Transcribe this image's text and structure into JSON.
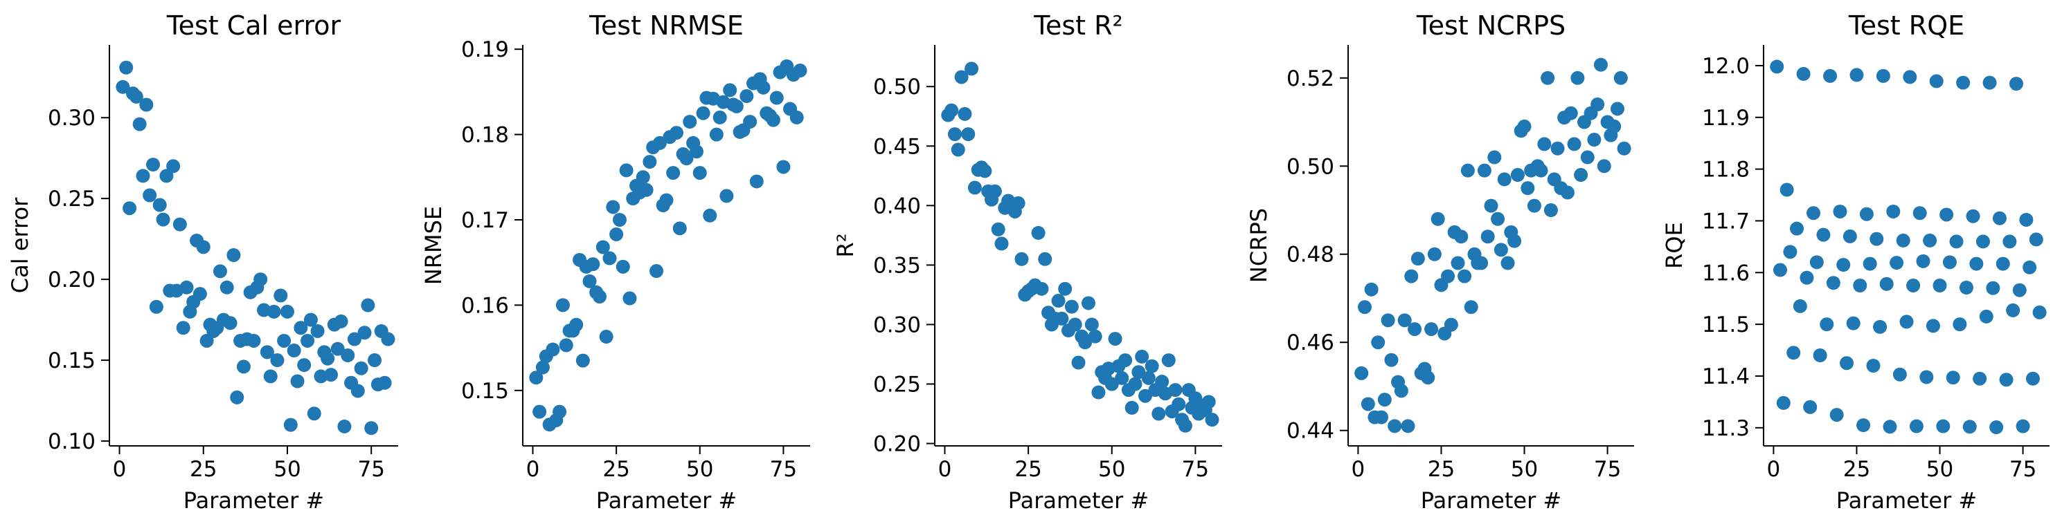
{
  "figure": {
    "marker_color": "#1f77b4",
    "axis_color": "#000000"
  },
  "chart_data": [
    {
      "type": "scatter",
      "title": "Test Cal error",
      "xlabel": "Parameter #",
      "ylabel": "Cal error",
      "xlim": [
        -3,
        83
      ],
      "ylim": [
        0.097,
        0.345
      ],
      "xticks": [
        "0",
        "25",
        "50",
        "75"
      ],
      "xtick_values": [
        0,
        25,
        50,
        75
      ],
      "yticks": [
        "0.10",
        "0.15",
        "0.20",
        "0.25",
        "0.30"
      ],
      "ytick_values": [
        0.1,
        0.15,
        0.2,
        0.25,
        0.3
      ],
      "grid": false,
      "legend": "none",
      "series": [
        {
          "x": [
            1,
            2,
            3,
            4,
            5,
            6,
            7,
            8,
            9,
            10,
            11,
            12,
            13,
            14,
            15,
            16,
            17,
            18,
            19,
            20,
            21,
            22,
            23,
            24,
            25,
            26,
            27,
            28,
            29,
            30,
            31,
            32,
            33,
            34,
            35,
            36,
            37,
            38,
            39,
            40,
            41,
            42,
            43,
            44,
            45,
            46,
            47,
            48,
            49,
            50,
            51,
            52,
            53,
            54,
            55,
            56,
            57,
            58,
            59,
            60,
            61,
            62,
            63,
            64,
            65,
            66,
            67,
            68,
            69,
            70,
            71,
            72,
            73,
            74,
            75,
            76,
            77,
            78,
            79,
            80
          ],
          "y": [
            0.319,
            0.331,
            0.244,
            0.315,
            0.313,
            0.296,
            0.264,
            0.308,
            0.252,
            0.271,
            0.183,
            0.246,
            0.237,
            0.264,
            0.193,
            0.27,
            0.193,
            0.234,
            0.17,
            0.195,
            0.18,
            0.186,
            0.224,
            0.191,
            0.22,
            0.162,
            0.172,
            0.168,
            0.17,
            0.205,
            0.175,
            0.195,
            0.173,
            0.215,
            0.127,
            0.162,
            0.146,
            0.163,
            0.192,
            0.162,
            0.195,
            0.2,
            0.181,
            0.155,
            0.14,
            0.18,
            0.15,
            0.19,
            0.162,
            0.18,
            0.11,
            0.156,
            0.137,
            0.17,
            0.147,
            0.162,
            0.175,
            0.117,
            0.168,
            0.14,
            0.155,
            0.151,
            0.141,
            0.172,
            0.157,
            0.174,
            0.109,
            0.153,
            0.136,
            0.163,
            0.131,
            0.145,
            0.167,
            0.184,
            0.108,
            0.15,
            0.135,
            0.168,
            0.136,
            0.163
          ]
        }
      ]
    },
    {
      "type": "scatter",
      "title": "Test NRMSE",
      "xlabel": "Parameter #",
      "ylabel": "NRMSE",
      "xlim": [
        -3,
        83
      ],
      "ylim": [
        0.1435,
        0.1905
      ],
      "xticks": [
        "0",
        "25",
        "50",
        "75"
      ],
      "xtick_values": [
        0,
        25,
        50,
        75
      ],
      "yticks": [
        "0.15",
        "0.16",
        "0.17",
        "0.18",
        "0.19"
      ],
      "ytick_values": [
        0.15,
        0.16,
        0.17,
        0.18,
        0.19
      ],
      "grid": false,
      "legend": "none",
      "series": [
        {
          "x": [
            1,
            2,
            3,
            4,
            5,
            6,
            7,
            8,
            9,
            10,
            11,
            12,
            13,
            14,
            15,
            16,
            17,
            18,
            19,
            20,
            21,
            22,
            23,
            24,
            25,
            26,
            27,
            28,
            29,
            30,
            31,
            32,
            33,
            34,
            35,
            36,
            37,
            38,
            39,
            40,
            41,
            42,
            43,
            44,
            45,
            46,
            47,
            48,
            49,
            50,
            51,
            52,
            53,
            54,
            55,
            56,
            57,
            58,
            59,
            60,
            61,
            62,
            63,
            64,
            65,
            66,
            67,
            68,
            69,
            70,
            71,
            72,
            73,
            74,
            75,
            76,
            77,
            78,
            79,
            80
          ],
          "y": [
            0.1515,
            0.1475,
            0.1527,
            0.154,
            0.146,
            0.1548,
            0.1465,
            0.1475,
            0.16,
            0.1553,
            0.157,
            0.157,
            0.1577,
            0.1653,
            0.1535,
            0.1645,
            0.1628,
            0.1648,
            0.1615,
            0.161,
            0.1668,
            0.1563,
            0.1655,
            0.1715,
            0.1683,
            0.17,
            0.1645,
            0.1758,
            0.1608,
            0.1725,
            0.174,
            0.1732,
            0.175,
            0.1735,
            0.1768,
            0.1785,
            0.164,
            0.179,
            0.1717,
            0.1723,
            0.1797,
            0.1755,
            0.1802,
            0.169,
            0.1777,
            0.1772,
            0.1815,
            0.179,
            0.178,
            0.1755,
            0.1825,
            0.1843,
            0.1705,
            0.1842,
            0.18,
            0.182,
            0.1838,
            0.1728,
            0.1852,
            0.1835,
            0.1833,
            0.1803,
            0.1805,
            0.1845,
            0.1815,
            0.186,
            0.1745,
            0.1865,
            0.1855,
            0.1825,
            0.1822,
            0.1817,
            0.1843,
            0.1873,
            0.1762,
            0.188,
            0.183,
            0.187,
            0.182,
            0.1875
          ]
        }
      ]
    },
    {
      "type": "scatter",
      "title": "Test R²",
      "xlabel": "Parameter #",
      "ylabel": "R²",
      "xlim": [
        -3,
        83
      ],
      "ylim": [
        0.198,
        0.535
      ],
      "xticks": [
        "0",
        "25",
        "50",
        "75"
      ],
      "xtick_values": [
        0,
        25,
        50,
        75
      ],
      "yticks": [
        "0.20",
        "0.25",
        "0.30",
        "0.35",
        "0.40",
        "0.45",
        "0.50"
      ],
      "ytick_values": [
        0.2,
        0.25,
        0.3,
        0.35,
        0.4,
        0.45,
        0.5
      ],
      "grid": false,
      "legend": "none",
      "series": [
        {
          "x": [
            1,
            2,
            3,
            4,
            5,
            6,
            7,
            8,
            9,
            10,
            11,
            12,
            13,
            14,
            15,
            16,
            17,
            18,
            19,
            20,
            21,
            22,
            23,
            24,
            25,
            26,
            27,
            28,
            29,
            30,
            31,
            32,
            33,
            34,
            35,
            36,
            37,
            38,
            39,
            40,
            41,
            42,
            43,
            44,
            45,
            46,
            47,
            48,
            49,
            50,
            51,
            52,
            53,
            54,
            55,
            56,
            57,
            58,
            59,
            60,
            61,
            62,
            63,
            64,
            65,
            66,
            67,
            68,
            69,
            70,
            71,
            72,
            73,
            74,
            75,
            76,
            77,
            78,
            79,
            80
          ],
          "y": [
            0.476,
            0.48,
            0.46,
            0.447,
            0.508,
            0.477,
            0.46,
            0.515,
            0.415,
            0.43,
            0.432,
            0.429,
            0.412,
            0.405,
            0.412,
            0.38,
            0.368,
            0.398,
            0.404,
            0.399,
            0.395,
            0.402,
            0.355,
            0.325,
            0.328,
            0.33,
            0.333,
            0.377,
            0.33,
            0.355,
            0.31,
            0.3,
            0.305,
            0.32,
            0.305,
            0.33,
            0.295,
            0.315,
            0.3,
            0.268,
            0.29,
            0.285,
            0.318,
            0.3,
            0.29,
            0.243,
            0.26,
            0.255,
            0.263,
            0.25,
            0.288,
            0.265,
            0.255,
            0.27,
            0.245,
            0.23,
            0.25,
            0.26,
            0.273,
            0.24,
            0.255,
            0.265,
            0.245,
            0.225,
            0.252,
            0.242,
            0.27,
            0.227,
            0.245,
            0.233,
            0.22,
            0.215,
            0.245,
            0.23,
            0.238,
            0.225,
            0.232,
            0.228,
            0.235,
            0.22
          ]
        }
      ]
    },
    {
      "type": "scatter",
      "title": "Test NCRPS",
      "xlabel": "Parameter #",
      "ylabel": "NCRPS",
      "xlim": [
        -3,
        83
      ],
      "ylim": [
        0.4365,
        0.5275
      ],
      "xticks": [
        "0",
        "25",
        "50",
        "75"
      ],
      "xtick_values": [
        0,
        25,
        50,
        75
      ],
      "yticks": [
        "0.44",
        "0.46",
        "0.48",
        "0.50",
        "0.52"
      ],
      "ytick_values": [
        0.44,
        0.46,
        0.48,
        0.5,
        0.52
      ],
      "grid": false,
      "legend": "none",
      "series": [
        {
          "x": [
            1,
            2,
            3,
            4,
            5,
            6,
            7,
            8,
            9,
            10,
            11,
            12,
            13,
            14,
            15,
            16,
            17,
            18,
            19,
            20,
            21,
            22,
            23,
            24,
            25,
            26,
            27,
            28,
            29,
            30,
            31,
            32,
            33,
            34,
            35,
            36,
            37,
            38,
            39,
            40,
            41,
            42,
            43,
            44,
            45,
            46,
            47,
            48,
            49,
            50,
            51,
            52,
            53,
            54,
            55,
            56,
            57,
            58,
            59,
            60,
            61,
            62,
            63,
            64,
            65,
            66,
            67,
            68,
            69,
            70,
            71,
            72,
            73,
            74,
            75,
            76,
            77,
            78,
            79,
            80
          ],
          "y": [
            0.453,
            0.468,
            0.446,
            0.472,
            0.443,
            0.46,
            0.443,
            0.447,
            0.465,
            0.456,
            0.441,
            0.451,
            0.449,
            0.465,
            0.441,
            0.475,
            0.463,
            0.479,
            0.453,
            0.454,
            0.452,
            0.463,
            0.48,
            0.488,
            0.473,
            0.462,
            0.475,
            0.464,
            0.485,
            0.478,
            0.484,
            0.475,
            0.499,
            0.468,
            0.48,
            0.478,
            0.478,
            0.499,
            0.484,
            0.491,
            0.502,
            0.488,
            0.481,
            0.497,
            0.478,
            0.485,
            0.483,
            0.498,
            0.508,
            0.509,
            0.495,
            0.499,
            0.491,
            0.5,
            0.499,
            0.505,
            0.52,
            0.49,
            0.497,
            0.504,
            0.495,
            0.511,
            0.494,
            0.512,
            0.505,
            0.52,
            0.498,
            0.51,
            0.502,
            0.512,
            0.506,
            0.514,
            0.523,
            0.5,
            0.51,
            0.507,
            0.509,
            0.513,
            0.52,
            0.504
          ]
        }
      ]
    },
    {
      "type": "scatter",
      "title": "Test RQE",
      "xlabel": "Parameter #",
      "ylabel": "RQE",
      "xlim": [
        -3,
        83
      ],
      "ylim": [
        11.265,
        12.04
      ],
      "xticks": [
        "0",
        "25",
        "50",
        "75"
      ],
      "xtick_values": [
        0,
        25,
        50,
        75
      ],
      "yticks": [
        "11.3",
        "11.4",
        "11.5",
        "11.6",
        "11.7",
        "11.8",
        "11.9",
        "12.0"
      ],
      "ytick_values": [
        11.3,
        11.4,
        11.5,
        11.6,
        11.7,
        11.8,
        11.9,
        12.0
      ],
      "grid": false,
      "legend": "none",
      "series": [
        {
          "x": [
            1,
            2,
            3,
            4,
            5,
            6,
            7,
            8,
            9,
            10,
            11,
            12,
            13,
            14,
            15,
            16,
            17,
            18,
            19,
            20,
            21,
            22,
            23,
            24,
            25,
            26,
            27,
            28,
            29,
            30,
            31,
            32,
            33,
            34,
            35,
            36,
            37,
            38,
            39,
            40,
            41,
            42,
            43,
            44,
            45,
            46,
            47,
            48,
            49,
            50,
            51,
            52,
            53,
            54,
            55,
            56,
            57,
            58,
            59,
            60,
            61,
            62,
            63,
            64,
            65,
            66,
            67,
            68,
            69,
            70,
            71,
            72,
            73,
            74,
            75,
            76,
            77,
            78,
            79,
            80
          ],
          "y": [
            11.998,
            11.605,
            11.348,
            11.76,
            11.64,
            11.445,
            11.685,
            11.535,
            11.984,
            11.59,
            11.34,
            11.715,
            11.62,
            11.44,
            11.673,
            11.5,
            11.98,
            11.58,
            11.325,
            11.718,
            11.615,
            11.425,
            11.67,
            11.502,
            11.982,
            11.575,
            11.305,
            11.713,
            11.617,
            11.42,
            11.665,
            11.495,
            11.98,
            11.578,
            11.302,
            11.718,
            11.619,
            11.403,
            11.662,
            11.505,
            11.978,
            11.575,
            11.303,
            11.715,
            11.622,
            11.398,
            11.662,
            11.497,
            11.97,
            11.575,
            11.303,
            11.712,
            11.62,
            11.397,
            11.66,
            11.5,
            11.967,
            11.571,
            11.302,
            11.709,
            11.617,
            11.395,
            11.66,
            11.515,
            11.967,
            11.57,
            11.301,
            11.705,
            11.617,
            11.393,
            11.66,
            11.527,
            11.965,
            11.566,
            11.303,
            11.702,
            11.61,
            11.395,
            11.664,
            11.523
          ]
        }
      ]
    }
  ]
}
